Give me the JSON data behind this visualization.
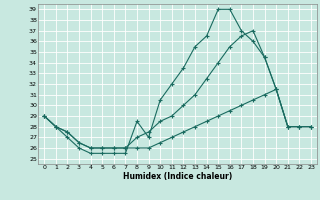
{
  "title": "",
  "xlabel": "Humidex (Indice chaleur)",
  "xlim": [
    -0.5,
    23.5
  ],
  "ylim": [
    24.5,
    39.5
  ],
  "xticks": [
    0,
    1,
    2,
    3,
    4,
    5,
    6,
    7,
    8,
    9,
    10,
    11,
    12,
    13,
    14,
    15,
    16,
    17,
    18,
    19,
    20,
    21,
    22,
    23
  ],
  "yticks": [
    25,
    26,
    27,
    28,
    29,
    30,
    31,
    32,
    33,
    34,
    35,
    36,
    37,
    38,
    39
  ],
  "bg_color": "#c8e8e0",
  "grid_color": "#b0d8d0",
  "line_color": "#1a6b60",
  "line1_x": [
    0,
    1,
    2,
    3,
    4,
    5,
    6,
    7,
    8,
    9,
    10,
    11,
    12,
    13,
    14,
    15,
    16,
    17,
    18,
    19,
    20,
    21,
    22,
    23
  ],
  "line1_y": [
    29,
    28,
    27,
    26,
    25.5,
    25.5,
    25.5,
    25.5,
    28.5,
    27,
    30.5,
    32,
    33.5,
    35.5,
    36.5,
    39,
    39,
    37,
    36,
    34.5,
    31.5,
    28,
    28,
    28
  ],
  "line2_x": [
    0,
    1,
    2,
    3,
    4,
    5,
    6,
    7,
    8,
    9,
    10,
    11,
    12,
    13,
    14,
    15,
    16,
    17,
    18,
    19,
    20,
    21,
    22,
    23
  ],
  "line2_y": [
    29,
    28,
    27.5,
    26.5,
    26,
    26,
    26,
    26,
    27,
    27.5,
    28.5,
    29,
    30,
    31,
    32.5,
    34,
    35.5,
    36.5,
    37,
    34.5,
    31.5,
    28,
    28,
    28
  ],
  "line3_x": [
    0,
    1,
    2,
    3,
    4,
    5,
    6,
    7,
    8,
    9,
    10,
    11,
    12,
    13,
    14,
    15,
    16,
    17,
    18,
    19,
    20,
    21,
    22,
    23
  ],
  "line3_y": [
    29,
    28,
    27.5,
    26.5,
    26,
    26,
    26,
    26,
    26,
    26,
    26.5,
    27,
    27.5,
    28,
    28.5,
    29,
    29.5,
    30,
    30.5,
    31,
    31.5,
    28,
    28,
    28
  ]
}
